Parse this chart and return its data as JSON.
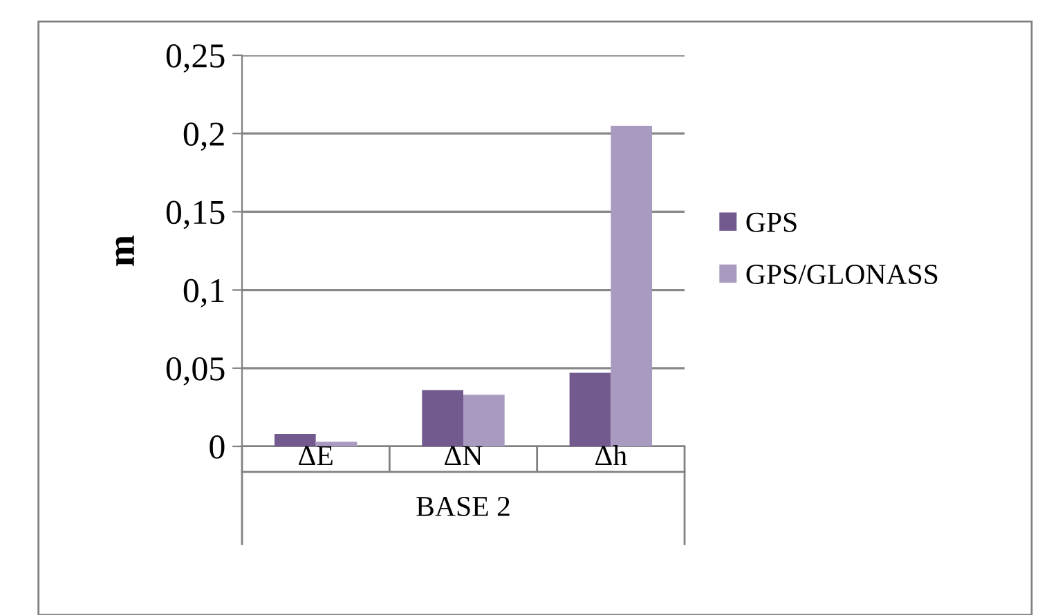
{
  "chart_data": {
    "type": "bar",
    "ylabel": "m",
    "xlabel": "BASE 2",
    "categories": [
      "ΔE",
      "ΔN",
      "Δh"
    ],
    "series": [
      {
        "name": "GPS",
        "color": "#725a8f",
        "values": [
          0.008,
          0.036,
          0.047
        ]
      },
      {
        "name": "GPS/GLONASS",
        "color": "#a99bc0",
        "values": [
          0.003,
          0.033,
          0.205
        ]
      }
    ],
    "ylim": [
      0,
      0.25
    ],
    "yticks": [
      {
        "value": 0,
        "label": "0"
      },
      {
        "value": 0.05,
        "label": "0,05"
      },
      {
        "value": 0.1,
        "label": "0,1"
      },
      {
        "value": 0.15,
        "label": "0,15"
      },
      {
        "value": 0.2,
        "label": "0,2"
      },
      {
        "value": 0.25,
        "label": "0,25"
      }
    ],
    "grid": "y",
    "legend": "right"
  }
}
